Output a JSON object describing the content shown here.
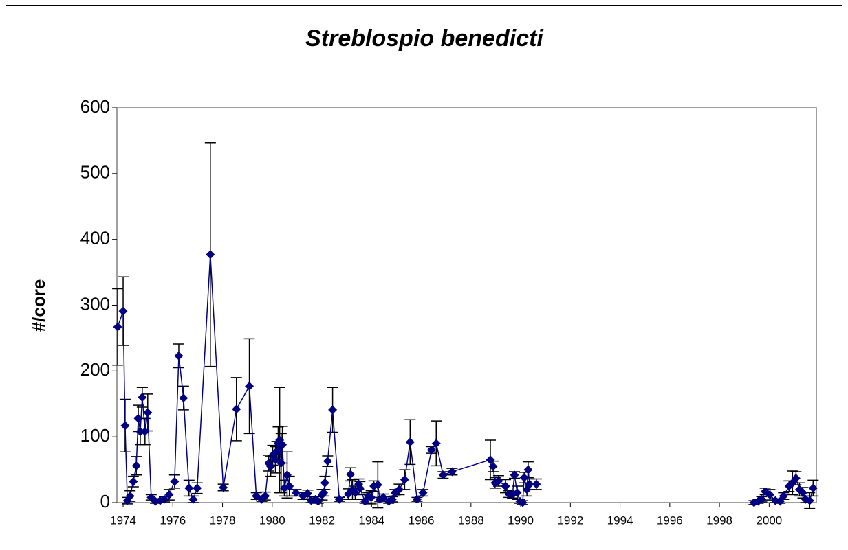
{
  "chart_data": {
    "type": "line",
    "title": "Streblospio benedicti",
    "y_label": "#/core",
    "xlim": [
      1973.75,
      2001.9
    ],
    "xticks": [
      1974,
      1976,
      1978,
      1980,
      1982,
      1984,
      1986,
      1988,
      1990,
      1992,
      1994,
      1996,
      1998,
      2000
    ],
    "ylim": [
      0,
      600
    ],
    "yticks": [
      0,
      100,
      200,
      300,
      400,
      500,
      600
    ],
    "series": [
      {
        "color": "#000080",
        "x": [
          1973.78,
          1974.0,
          1974.08,
          1974.17,
          1974.28,
          1974.41,
          1974.53,
          1974.61,
          1974.69,
          1974.77,
          1974.88,
          1974.99,
          1975.13,
          1975.3,
          1975.49,
          1975.66,
          1975.85,
          1976.07,
          1976.24,
          1976.43,
          1976.65,
          1976.82,
          1976.98,
          1977.51,
          1978.03,
          1978.56,
          1979.08,
          1979.36,
          1979.58,
          1979.72,
          1979.86,
          1979.94,
          1980.02,
          1980.13,
          1980.19,
          1980.24,
          1980.3,
          1980.36,
          1980.41,
          1980.49,
          1980.6,
          1980.69,
          1980.96,
          1981.24,
          1981.43,
          1981.57,
          1981.74,
          1981.85,
          1982.01,
          1982.07,
          1982.12,
          1982.23,
          1982.43,
          1982.7,
          1983.06,
          1983.15,
          1983.23,
          1983.34,
          1983.48,
          1983.53,
          1983.73,
          1983.86,
          1983.98,
          1984.09,
          1984.25,
          1984.33,
          1984.47,
          1984.69,
          1984.83,
          1984.94,
          1985.11,
          1985.33,
          1985.55,
          1985.83,
          1986.07,
          1986.41,
          1986.6,
          1986.88,
          1987.24,
          1988.78,
          1988.89,
          1988.97,
          1989.11,
          1989.39,
          1989.53,
          1989.67,
          1989.75,
          1989.86,
          1989.97,
          1990.08,
          1990.14,
          1990.25,
          1990.3,
          1990.36,
          1990.63,
          1994,
          1999.39,
          1999.56,
          1999.7,
          1999.84,
          2000.03,
          2000.25,
          2000.44,
          2000.58,
          2000.8,
          2000.94,
          2001.08,
          2001.22,
          2001.36,
          2001.47,
          2001.63,
          2001.77
        ],
        "values": [
          267,
          291,
          117,
          3,
          10,
          32,
          56,
          128,
          108,
          160,
          108,
          137,
          8,
          2,
          3,
          5,
          12,
          32,
          223,
          159,
          22,
          5,
          22,
          377,
          23,
          142,
          177,
          10,
          5,
          10,
          60,
          55,
          72,
          65,
          78,
          90,
          95,
          60,
          88,
          22,
          42,
          25,
          15,
          10,
          14,
          3,
          5,
          2,
          12,
          15,
          30,
          63,
          141,
          5,
          13,
          43,
          20,
          15,
          28,
          22,
          2,
          10,
          8,
          25,
          27,
          5,
          8,
          2,
          5,
          15,
          20,
          35,
          92,
          5,
          15,
          80,
          90,
          42,
          47,
          65,
          55,
          30,
          33,
          25,
          13,
          12,
          42,
          15,
          2,
          0,
          38,
          20,
          50,
          28,
          28,
          null,
          0,
          2,
          5,
          17,
          12,
          3,
          2,
          10,
          25,
          30,
          37,
          20,
          15,
          5,
          3,
          22
        ],
        "errors": [
          58,
          52,
          40,
          5,
          8,
          8,
          14,
          20,
          20,
          15,
          20,
          28,
          4,
          3,
          3,
          4,
          8,
          10,
          18,
          18,
          12,
          5,
          8,
          170,
          5,
          48,
          72,
          5,
          3,
          6,
          12,
          15,
          15,
          20,
          15,
          25,
          80,
          45,
          28,
          12,
          35,
          15,
          5,
          5,
          5,
          3,
          4,
          3,
          8,
          5,
          10,
          8,
          34,
          3,
          8,
          10,
          15,
          10,
          8,
          10,
          3,
          5,
          10,
          8,
          35,
          3,
          5,
          3,
          4,
          5,
          8,
          15,
          34,
          3,
          5,
          5,
          34,
          5,
          5,
          30,
          8,
          8,
          8,
          10,
          5,
          5,
          5,
          10,
          3,
          3,
          8,
          10,
          12,
          8,
          8,
          null,
          3,
          3,
          4,
          5,
          8,
          3,
          3,
          5,
          8,
          18,
          10,
          10,
          8,
          5,
          12,
          12
        ]
      }
    ]
  }
}
